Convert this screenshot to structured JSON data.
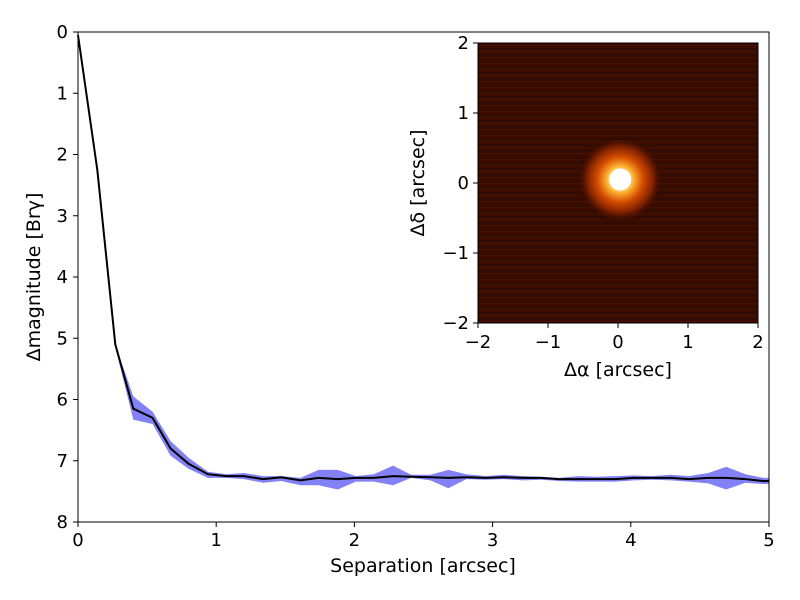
{
  "chart_data": [
    {
      "type": "line",
      "xlabel": "Separation [arcsec]",
      "ylabel": "Δmagnitude [Brγ]",
      "xlim": [
        0,
        5
      ],
      "ylim": [
        8,
        0
      ],
      "y_inverted": true,
      "grid": false,
      "xticks": [
        "0",
        "1",
        "2",
        "3",
        "4",
        "5"
      ],
      "yticks": [
        "0",
        "1",
        "2",
        "3",
        "4",
        "5",
        "6",
        "7",
        "8"
      ],
      "colors": {
        "line": "#000000",
        "band": "#7b7bf5"
      },
      "series": [
        {
          "x": [
            0.0,
            0.14,
            0.27,
            0.4,
            0.54,
            0.67,
            0.8,
            0.94,
            1.07,
            1.2,
            1.34,
            1.47,
            1.61,
            1.74,
            1.88,
            2.01,
            2.14,
            2.28,
            2.41,
            2.55,
            2.68,
            2.81,
            2.95,
            3.08,
            3.22,
            3.35,
            3.48,
            3.62,
            3.75,
            3.89,
            4.02,
            4.15,
            4.29,
            4.42,
            4.56,
            4.69,
            4.83,
            4.96,
            5.0
          ],
          "y": [
            0.05,
            2.25,
            5.1,
            6.15,
            6.3,
            6.8,
            7.05,
            7.22,
            7.25,
            7.25,
            7.3,
            7.27,
            7.32,
            7.28,
            7.3,
            7.28,
            7.28,
            7.25,
            7.26,
            7.27,
            7.28,
            7.27,
            7.28,
            7.27,
            7.28,
            7.28,
            7.3,
            7.3,
            7.3,
            7.3,
            7.28,
            7.28,
            7.28,
            7.3,
            7.28,
            7.28,
            7.3,
            7.33,
            7.33
          ],
          "y_low": [
            0.05,
            2.25,
            5.1,
            5.95,
            6.2,
            6.68,
            6.95,
            7.18,
            7.22,
            7.2,
            7.25,
            7.25,
            7.28,
            7.15,
            7.15,
            7.25,
            7.22,
            7.08,
            7.23,
            7.23,
            7.15,
            7.22,
            7.25,
            7.23,
            7.25,
            7.26,
            7.28,
            7.25,
            7.26,
            7.25,
            7.24,
            7.25,
            7.23,
            7.25,
            7.2,
            7.1,
            7.22,
            7.28,
            7.28
          ],
          "y_high": [
            0.05,
            2.3,
            5.15,
            6.33,
            6.4,
            6.92,
            7.13,
            7.28,
            7.28,
            7.3,
            7.36,
            7.33,
            7.4,
            7.4,
            7.47,
            7.34,
            7.34,
            7.4,
            7.28,
            7.32,
            7.45,
            7.3,
            7.31,
            7.3,
            7.32,
            7.31,
            7.33,
            7.34,
            7.34,
            7.34,
            7.32,
            7.31,
            7.32,
            7.34,
            7.37,
            7.47,
            7.36,
            7.38,
            7.38
          ]
        }
      ]
    },
    {
      "type": "heatmap",
      "xlabel": "Δα [arcsec]",
      "ylabel": "Δδ [arcsec]",
      "xlim": [
        -2,
        2
      ],
      "ylim": [
        -2,
        2
      ],
      "xticks": [
        "−2",
        "−1",
        "0",
        "1",
        "2"
      ],
      "yticks": [
        "−2",
        "−1",
        "0",
        "1",
        "2"
      ],
      "colormap": "afmhot",
      "source": {
        "x": 0.03,
        "y": 0.05
      },
      "background": "#3a0d00"
    }
  ]
}
